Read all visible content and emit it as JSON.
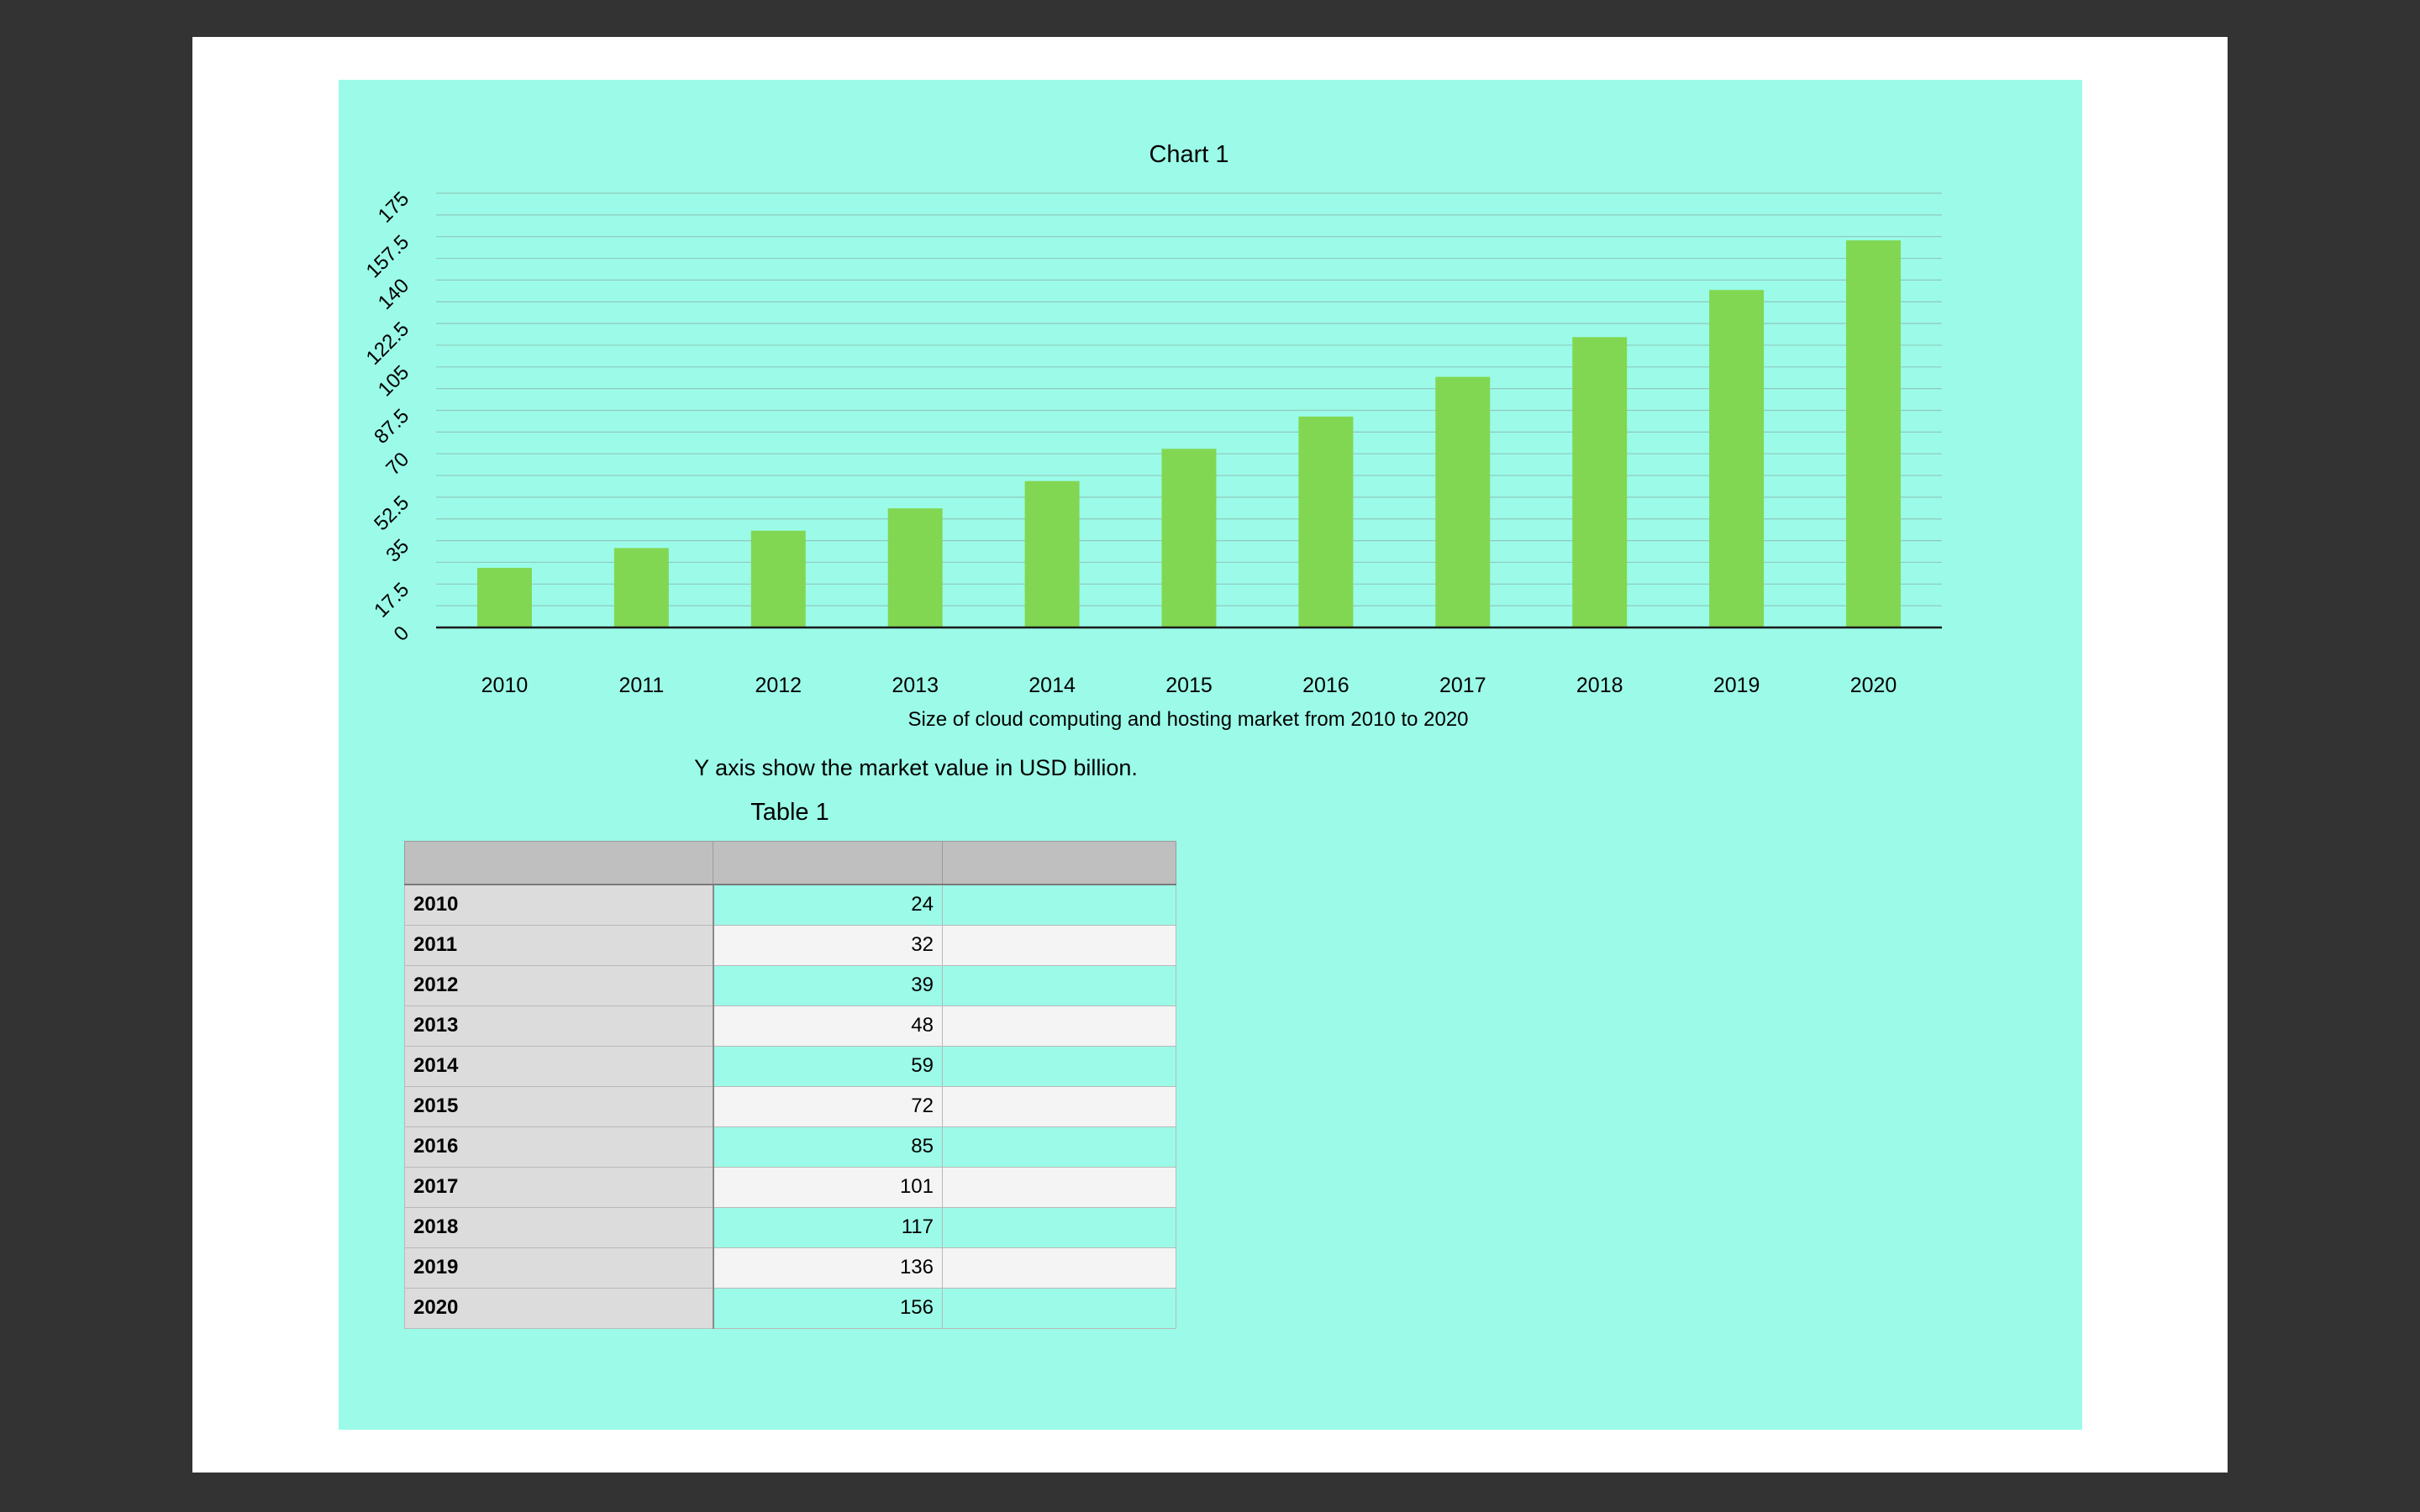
{
  "chart_data": {
    "type": "bar",
    "title": "Chart 1",
    "xlabel": "Size of cloud computing and hosting market from 2010 to 2020",
    "ylabel": "",
    "categories": [
      "2010",
      "2011",
      "2012",
      "2013",
      "2014",
      "2015",
      "2016",
      "2017",
      "2018",
      "2019",
      "2020"
    ],
    "values": [
      24,
      32,
      39,
      48,
      59,
      72,
      85,
      101,
      117,
      136,
      156
    ],
    "ylim": [
      0,
      175
    ],
    "yticks": [
      "0",
      "17.5",
      "35",
      "52.5",
      "70",
      "87.5",
      "105",
      "122.5",
      "140",
      "157.5",
      "175"
    ],
    "grid": true,
    "bar_color": "#82d752"
  },
  "note": "Y axis show the market value in USD billion.",
  "table": {
    "title": "Table 1",
    "headers": [
      "",
      "",
      ""
    ],
    "rows": [
      [
        "2010",
        "24",
        ""
      ],
      [
        "2011",
        "32",
        ""
      ],
      [
        "2012",
        "39",
        ""
      ],
      [
        "2013",
        "48",
        ""
      ],
      [
        "2014",
        "59",
        ""
      ],
      [
        "2015",
        "72",
        ""
      ],
      [
        "2016",
        "85",
        ""
      ],
      [
        "2017",
        "101",
        ""
      ],
      [
        "2018",
        "117",
        ""
      ],
      [
        "2019",
        "136",
        ""
      ],
      [
        "2020",
        "156",
        ""
      ]
    ]
  },
  "colors": {
    "canvas": "#9bfbe8",
    "background": "#333333",
    "page": "#ffffff"
  }
}
